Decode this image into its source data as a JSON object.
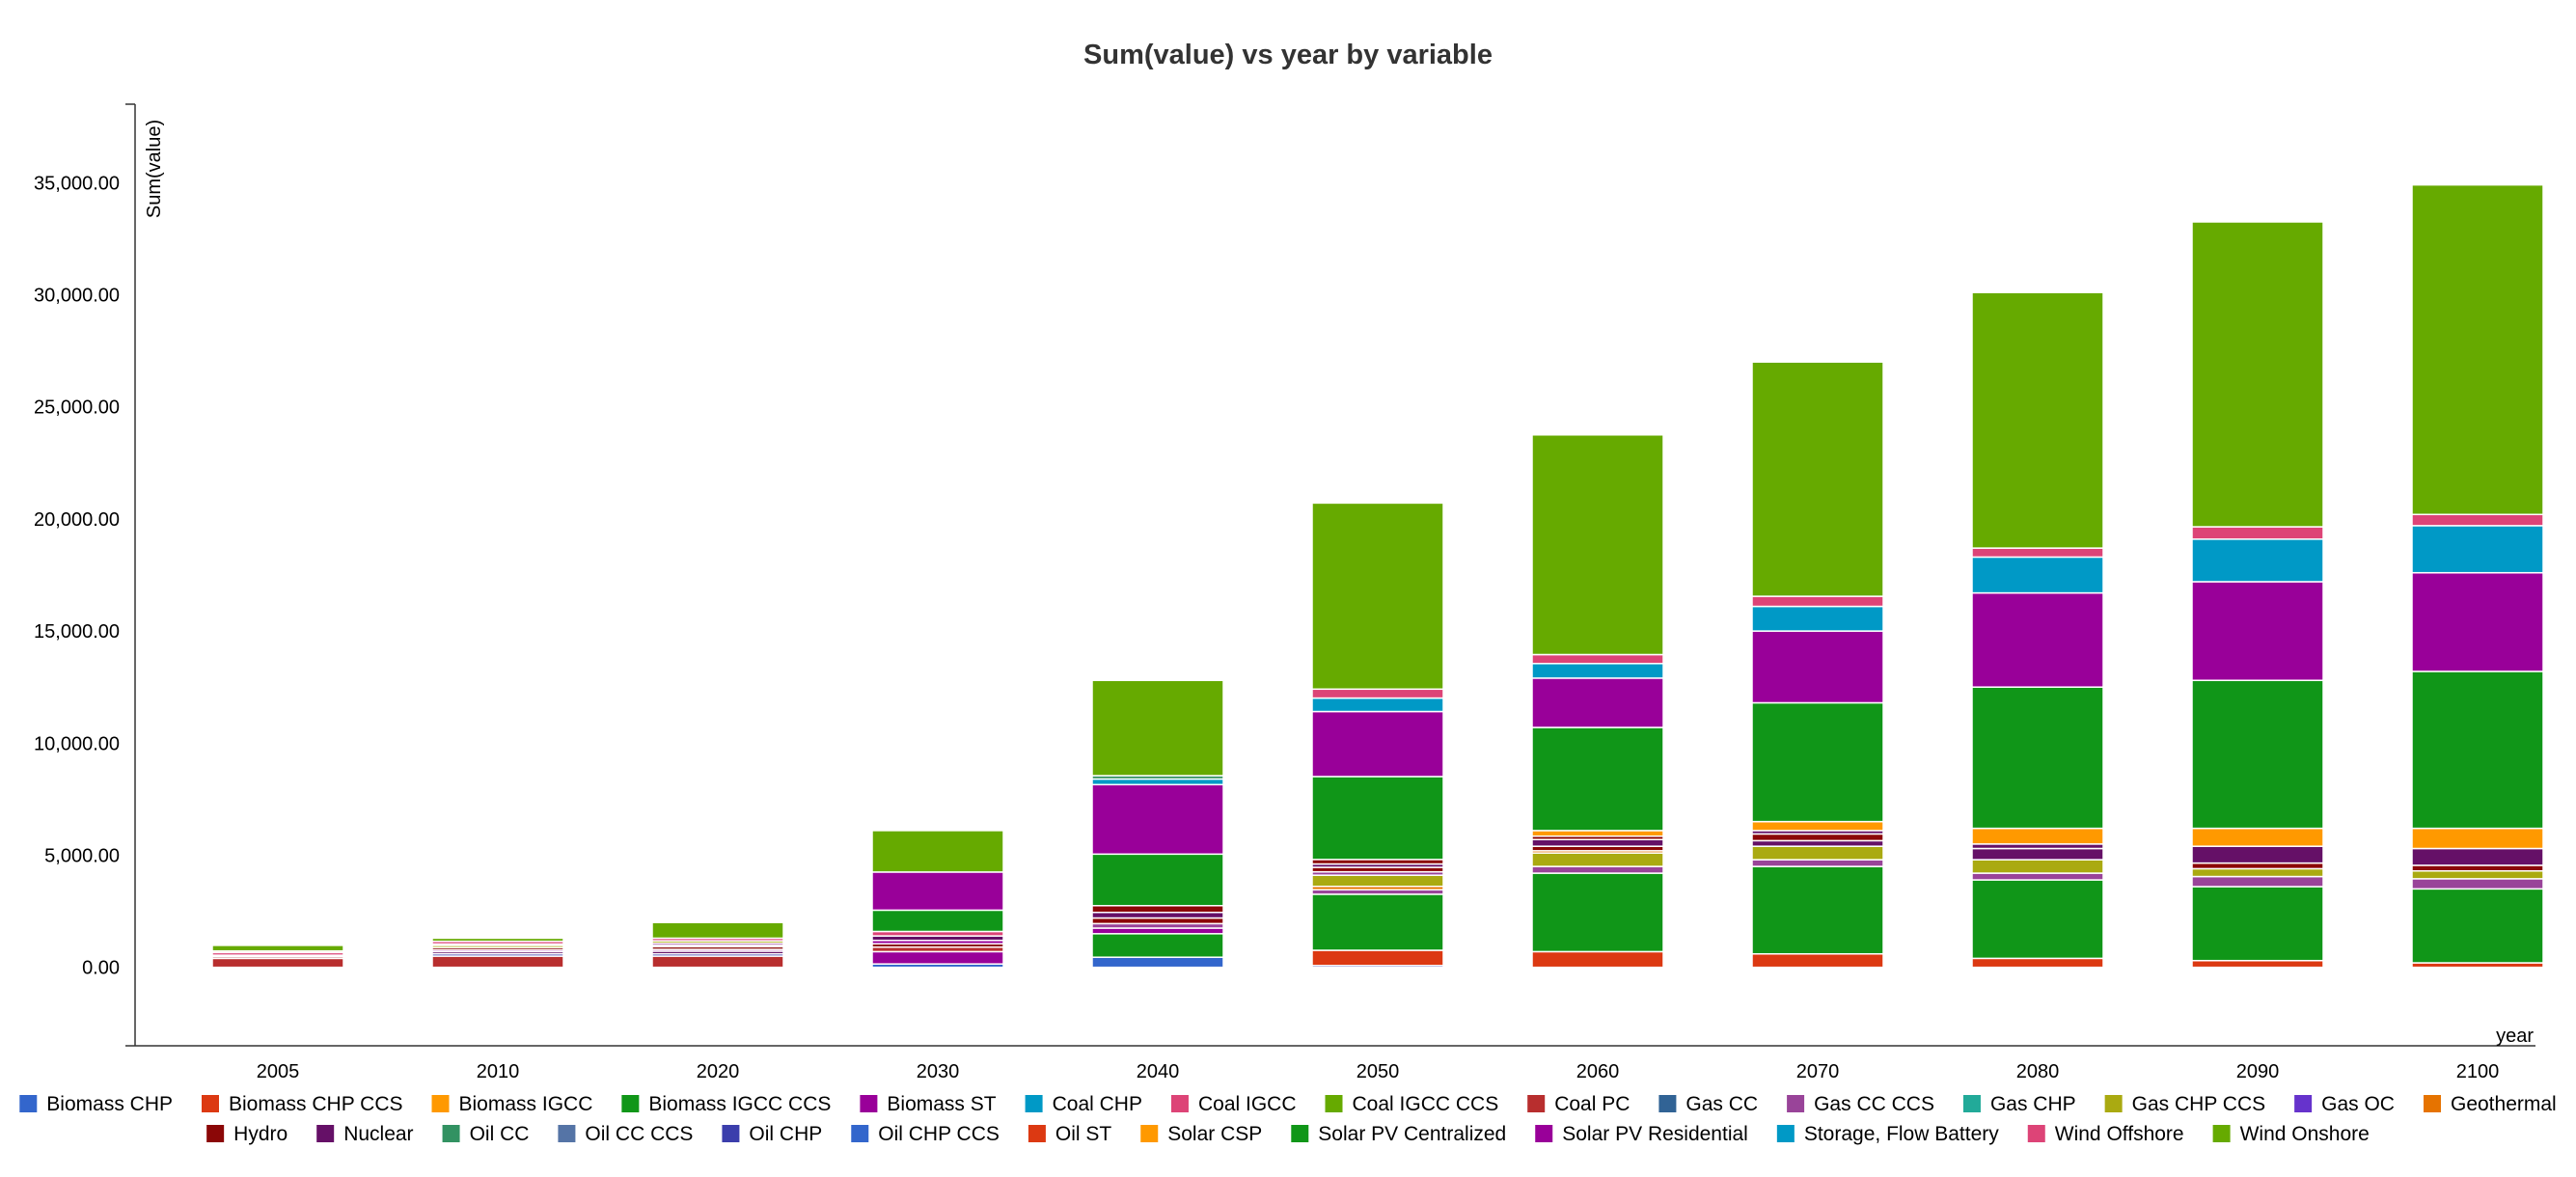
{
  "chart_data": {
    "type": "bar",
    "stacked": true,
    "title": "Sum(value) vs year by variable",
    "xlabel": "year",
    "ylabel": "Sum(value)",
    "ylim": [
      -3500,
      38500
    ],
    "yticks": [
      0,
      5000,
      10000,
      15000,
      20000,
      25000,
      30000,
      35000
    ],
    "ytick_labels": [
      "0.00",
      "5,000.00",
      "10,000.00",
      "15,000.00",
      "20,000.00",
      "25,000.00",
      "30,000.00",
      "35,000.00"
    ],
    "legend_position": "bottom",
    "categories": [
      "2005",
      "2010",
      "2020",
      "2030",
      "2040",
      "2050",
      "2060",
      "2070",
      "2080",
      "2090",
      "2100"
    ],
    "series": [
      {
        "name": "Biomass CHP",
        "color": "#3366cc",
        "values": [
          0,
          0,
          0,
          0,
          0,
          0,
          0,
          0,
          0,
          0,
          0
        ]
      },
      {
        "name": "Biomass CHP CCS",
        "color": "#dc3912",
        "values": [
          0,
          0,
          0,
          0,
          0,
          0,
          0,
          0,
          0,
          0,
          0
        ]
      },
      {
        "name": "Biomass IGCC",
        "color": "#ff9900",
        "values": [
          0,
          0,
          0,
          0,
          0,
          0,
          0,
          0,
          0,
          0,
          0
        ]
      },
      {
        "name": "Biomass IGCC CCS",
        "color": "#109618",
        "values": [
          0,
          0,
          0,
          0,
          0,
          0,
          0,
          0,
          0,
          0,
          0
        ]
      },
      {
        "name": "Biomass ST",
        "color": "#990099",
        "values": [
          0,
          0,
          0,
          0,
          0,
          0,
          0,
          0,
          0,
          0,
          0
        ]
      },
      {
        "name": "Coal CHP",
        "color": "#0099c6",
        "values": [
          0,
          0,
          0,
          0,
          0,
          0,
          0,
          0,
          0,
          0,
          0
        ]
      },
      {
        "name": "Coal IGCC",
        "color": "#dd4477",
        "values": [
          0,
          0,
          0,
          0,
          0,
          0,
          0,
          0,
          0,
          0,
          0
        ]
      },
      {
        "name": "Coal IGCC CCS",
        "color": "#66aa00",
        "values": [
          0,
          0,
          0,
          0,
          0,
          0,
          0,
          0,
          0,
          0,
          0
        ]
      },
      {
        "name": "Coal PC",
        "color": "#b82e2e",
        "values": [
          400,
          500,
          500,
          200,
          0,
          0,
          0,
          0,
          0,
          0,
          0
        ]
      },
      {
        "name": "Gas CC",
        "color": "#316395",
        "values": [
          0,
          0,
          0,
          0,
          0,
          0,
          0,
          0,
          0,
          0,
          0
        ]
      },
      {
        "name": "Gas CC CCS",
        "color": "#994499",
        "values": [
          0,
          0,
          0,
          0,
          0,
          0,
          0,
          0,
          0,
          0,
          0
        ]
      },
      {
        "name": "Gas CHP",
        "color": "#22aa99",
        "values": [
          0,
          0,
          0,
          0,
          0,
          0,
          0,
          0,
          0,
          0,
          0
        ]
      },
      {
        "name": "Gas CHP CCS",
        "color": "#aaaa11",
        "values": [
          0,
          0,
          0,
          0,
          0,
          0,
          0,
          0,
          0,
          0,
          0
        ]
      },
      {
        "name": "Gas OC",
        "color": "#6633cc",
        "values": [
          0,
          0,
          0,
          0,
          0,
          0,
          0,
          0,
          0,
          0,
          0
        ]
      },
      {
        "name": "Geothermal",
        "color": "#e67300",
        "values": [
          0,
          0,
          0,
          0,
          0,
          0,
          0,
          0,
          0,
          0,
          0
        ]
      },
      {
        "name": "Hydro",
        "color": "#8b0707",
        "values": [
          0,
          0,
          0,
          0,
          0,
          0,
          0,
          0,
          0,
          0,
          0
        ]
      },
      {
        "name": "Nuclear",
        "color": "#651067",
        "values": [
          0,
          0,
          0,
          0,
          0,
          0,
          0,
          0,
          0,
          0,
          0
        ]
      },
      {
        "name": "Oil CC",
        "color": "#329262",
        "values": [
          0,
          0,
          0,
          0,
          0,
          0,
          0,
          0,
          0,
          0,
          0
        ]
      },
      {
        "name": "Oil CC CCS",
        "color": "#5574a6",
        "values": [
          0,
          0,
          0,
          0,
          0,
          0,
          0,
          0,
          0,
          0,
          0
        ]
      },
      {
        "name": "Oil CHP",
        "color": "#3b3eac",
        "values": [
          0,
          0,
          0,
          0,
          0,
          0,
          0,
          0,
          0,
          0,
          0
        ]
      },
      {
        "name": "Oil CHP CCS",
        "color": "#3366cc",
        "values": [
          0,
          0,
          0,
          0,
          0,
          0,
          0,
          0,
          0,
          0,
          0
        ]
      },
      {
        "name": "Oil ST",
        "color": "#dc3912",
        "values": [
          0,
          0,
          0,
          0,
          0,
          0,
          0,
          0,
          0,
          0,
          0
        ]
      },
      {
        "name": "Solar CSP",
        "color": "#ff9900",
        "values": [
          0,
          0,
          0,
          0,
          0,
          0,
          0,
          0,
          0,
          0,
          0
        ]
      },
      {
        "name": "Solar PV Centralized",
        "color": "#109618",
        "values": [
          0,
          0,
          0,
          0,
          0,
          0,
          0,
          0,
          0,
          0,
          0
        ]
      },
      {
        "name": "Solar PV Residential",
        "color": "#990099",
        "values": [
          0,
          0,
          0,
          0,
          0,
          0,
          0,
          0,
          0,
          0,
          0
        ]
      },
      {
        "name": "Storage, Flow Battery",
        "color": "#0099c6",
        "values": [
          0,
          0,
          0,
          0,
          0,
          0,
          0,
          0,
          0,
          0,
          0
        ]
      },
      {
        "name": "Wind Offshore",
        "color": "#dd4477",
        "values": [
          0,
          0,
          0,
          0,
          0,
          0,
          0,
          0,
          0,
          0,
          0
        ]
      },
      {
        "name": "Wind Onshore",
        "color": "#66aa00",
        "values": [
          0,
          0,
          0,
          0,
          0,
          0,
          0,
          0,
          0,
          0,
          0
        ]
      }
    ],
    "segments": [
      [
        [
          "Coal PC",
          400
        ],
        [
          "Hydro",
          80
        ],
        [
          "Biomass ST",
          60
        ],
        [
          "Coal IGCC",
          120
        ],
        [
          "Gas CHP CCS",
          70
        ],
        [
          "Coal IGCC CCS",
          250
        ]
      ],
      [
        [
          "Coal PC",
          500
        ],
        [
          "Oil CHP",
          100
        ],
        [
          "Nuclear",
          100
        ],
        [
          "Biomass ST",
          80
        ],
        [
          "Hydro",
          100
        ],
        [
          "Gas CHP CCS",
          100
        ],
        [
          "Biomass IGCC",
          60
        ],
        [
          "Coal IGCC",
          120
        ],
        [
          "Coal IGCC CCS",
          140
        ]
      ],
      [
        [
          "Coal PC",
          500
        ],
        [
          "Oil CHP",
          100
        ],
        [
          "Nuclear",
          120
        ],
        [
          "Biomass ST",
          80
        ],
        [
          "Hydro",
          120
        ],
        [
          "Coal CHP",
          60
        ],
        [
          "Gas CC CCS",
          100
        ],
        [
          "Gas CHP CCS",
          100
        ],
        [
          "Coal IGCC",
          120
        ],
        [
          "Coal IGCC CCS",
          700
        ]
      ],
      [
        [
          "Oil CHP CCS",
          150
        ],
        [
          "Biomass ST",
          550
        ],
        [
          "Coal PC",
          200
        ],
        [
          "Hydro",
          150
        ],
        [
          "Biomass ST",
          150
        ],
        [
          "Nuclear",
          200
        ],
        [
          "Coal IGCC",
          200
        ],
        [
          "Biomass IGCC CCS",
          950
        ],
        [
          "Biomass ST",
          1700
        ],
        [
          "Coal IGCC CCS",
          1850
        ]
      ],
      [
        [
          "Oil CHP CCS",
          450
        ],
        [
          "Biomass IGCC CCS",
          1050
        ],
        [
          "Biomass ST",
          250
        ],
        [
          "Gas CC CCS",
          200
        ],
        [
          "Hydro",
          250
        ],
        [
          "Nuclear",
          250
        ],
        [
          "Hydro",
          300
        ],
        [
          "Biomass IGCC CCS",
          2300
        ],
        [
          "Biomass ST",
          3100
        ],
        [
          "Coal CHP",
          250
        ],
        [
          "Oil CC",
          150
        ],
        [
          "Coal IGCC CCS",
          4250
        ]
      ],
      [
        [
          "Oil CHP",
          80
        ],
        [
          "Oil ST",
          680
        ],
        [
          "Biomass IGCC CCS",
          2500
        ],
        [
          "Gas CC CCS",
          200
        ],
        [
          "Geothermal",
          150
        ],
        [
          "Gas CHP CCS",
          500
        ],
        [
          "Gas CC CCS",
          150
        ],
        [
          "Hydro",
          200
        ],
        [
          "Nuclear",
          150
        ],
        [
          "Hydro",
          200
        ],
        [
          "Biomass IGCC CCS",
          3700
        ],
        [
          "Biomass ST",
          2900
        ],
        [
          "Coal CHP",
          600
        ],
        [
          "Wind Offshore",
          400
        ],
        [
          "Coal IGCC CCS",
          8300
        ]
      ],
      [
        [
          "Oil ST",
          700
        ],
        [
          "Biomass IGCC CCS",
          3500
        ],
        [
          "Gas CC CCS",
          300
        ],
        [
          "Gas CHP CCS",
          600
        ],
        [
          "Geothermal",
          100
        ],
        [
          "Hydro",
          200
        ],
        [
          "Nuclear",
          300
        ],
        [
          "Hydro",
          150
        ],
        [
          "Solar CSP",
          250
        ],
        [
          "Biomass IGCC CCS",
          4600
        ],
        [
          "Biomass ST",
          2200
        ],
        [
          "Coal CHP",
          650
        ],
        [
          "Wind Offshore",
          400
        ],
        [
          "Wind Onshore",
          9800
        ]
      ],
      [
        [
          "Oil ST",
          600
        ],
        [
          "Biomass IGCC CCS",
          3900
        ],
        [
          "Gas CC CCS",
          300
        ],
        [
          "Gas CHP CCS",
          600
        ],
        [
          "Nuclear",
          250
        ],
        [
          "Hydro",
          300
        ],
        [
          "Nuclear",
          150
        ],
        [
          "Solar CSP",
          400
        ],
        [
          "Biomass IGCC CCS",
          5300
        ],
        [
          "Biomass ST",
          3200
        ],
        [
          "Coal CHP",
          1100
        ],
        [
          "Wind Offshore",
          450
        ],
        [
          "Wind Onshore",
          10450
        ]
      ],
      [
        [
          "Oil ST",
          400
        ],
        [
          "Biomass IGCC CCS",
          3500
        ],
        [
          "Gas CC CCS",
          300
        ],
        [
          "Gas CHP CCS",
          600
        ],
        [
          "Nuclear",
          500
        ],
        [
          "Nuclear",
          200
        ],
        [
          "Solar CSP",
          700
        ],
        [
          "Biomass IGCC CCS",
          6300
        ],
        [
          "Biomass ST",
          4200
        ],
        [
          "Coal CHP",
          1600
        ],
        [
          "Wind Offshore",
          400
        ],
        [
          "Wind Onshore",
          11400
        ]
      ],
      [
        [
          "Oil ST",
          300
        ],
        [
          "Biomass IGCC CCS",
          3300
        ],
        [
          "Gas CC CCS",
          450
        ],
        [
          "Gas CHP CCS",
          350
        ],
        [
          "Hydro",
          250
        ],
        [
          "Nuclear",
          750
        ],
        [
          "Solar CSP",
          800
        ],
        [
          "Biomass IGCC CCS",
          6600
        ],
        [
          "Biomass ST",
          4400
        ],
        [
          "Coal CHP",
          1900
        ],
        [
          "Wind Offshore",
          550
        ],
        [
          "Wind Onshore",
          13600
        ]
      ],
      [
        [
          "Oil ST",
          200
        ],
        [
          "Biomass IGCC CCS",
          3300
        ],
        [
          "Gas CC CCS",
          450
        ],
        [
          "Gas CHP CCS",
          350
        ],
        [
          "Hydro",
          250
        ],
        [
          "Nuclear",
          750
        ],
        [
          "Solar CSP",
          900
        ],
        [
          "Biomass IGCC CCS",
          7000
        ],
        [
          "Biomass ST",
          4400
        ],
        [
          "Coal CHP",
          2100
        ],
        [
          "Wind Offshore",
          500
        ],
        [
          "Wind Onshore",
          14700
        ]
      ]
    ]
  }
}
